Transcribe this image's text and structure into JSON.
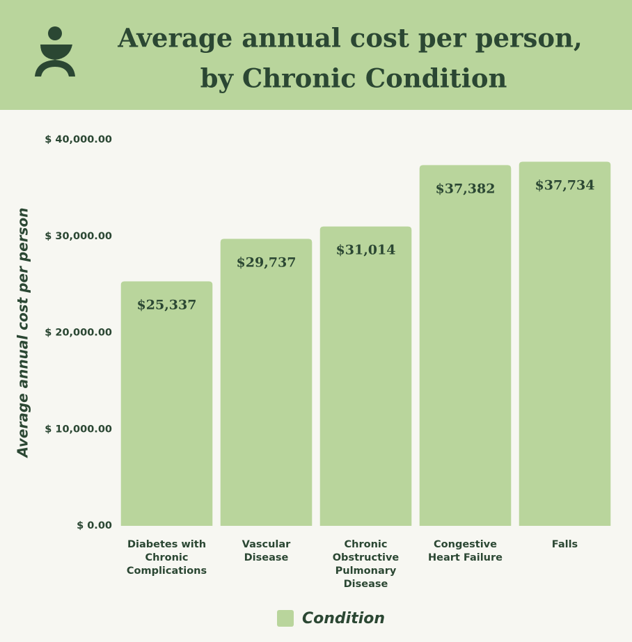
{
  "chart_data": {
    "type": "bar",
    "title": [
      "Average annual cost per person,",
      "by Chronic Condition"
    ],
    "y_label": "Average annual cost per person",
    "categories": [
      "Diabetes with Chronic Complications",
      "Vascular Disease",
      "Chronic Obstructive Pulmonary Disease",
      "Congestive Heart Failure",
      "Falls"
    ],
    "series": [
      {
        "name": "Condition",
        "color": "#b9d59c",
        "values": [
          25337,
          29737,
          31014,
          37382,
          37734
        ],
        "value_labels": [
          "$25,337",
          "$29,737",
          "$31,014",
          "$37,382",
          "$37,734"
        ]
      }
    ],
    "ylim": [
      0,
      40000
    ],
    "yticks": [
      {
        "value": 0,
        "label": "$ 0.00"
      },
      {
        "value": 10000,
        "label": "$ 10,000.00"
      },
      {
        "value": 20000,
        "label": "$ 20,000.00"
      },
      {
        "value": 30000,
        "label": "$ 30,000.00"
      },
      {
        "value": 40000,
        "label": "$ 40,000.00"
      }
    ],
    "grid": false
  }
}
